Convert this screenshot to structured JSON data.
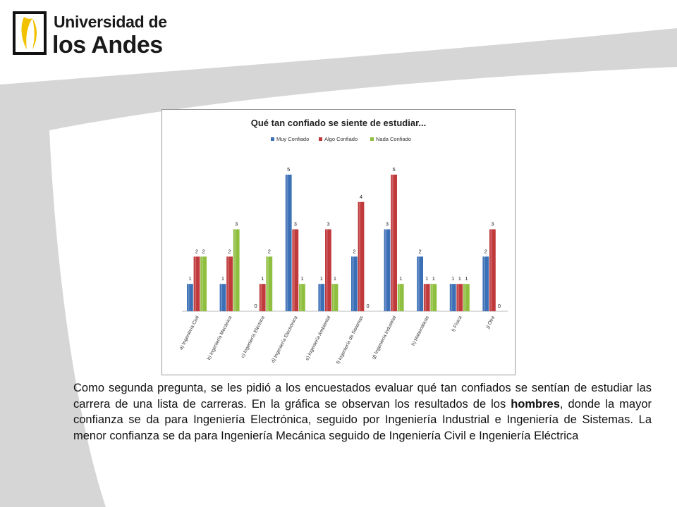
{
  "colors": {
    "muy": "#3b6fb6",
    "algo": "#c0393b",
    "nada": "#8fbf3f",
    "swoosh": "#d6d6d6"
  },
  "logo": {
    "line1": "Universidad de",
    "line2": "los Andes"
  },
  "body": {
    "part1": "Como segunda pregunta, se les pidió a los encuestados evaluar qué tan confiados se sentían de estudiar las carrera de una lista de carreras. En la gráfica se observan los resultados de los ",
    "bold": "hombres",
    "part2": ", donde la mayor confianza se da para Ingeniería Electrónica, seguido por Ingeniería Industrial e Ingeniería de Sistemas. La menor confianza se da para Ingeniería Mecánica seguido de Ingeniería Civil e Ingeniería Eléctrica"
  },
  "chart_data": {
    "type": "bar",
    "title": "Qué tan confiado se siente de estudiar...",
    "legend_position": "top",
    "grid": false,
    "ylim": [
      0,
      5
    ],
    "categories": [
      "a)   Ingeniería Civil",
      "b)   Ingeniería Mecánica",
      "c)   Ingeniería Eléctrica",
      "d)   Ingeniería Electrónica",
      "e)   Ingeniería Ambiental",
      "f)   Ingeniería de Sistemas",
      "g)   Ingeniería Industrial",
      "h)   Matemáticas",
      "i)   Física",
      "j)   Otra"
    ],
    "series": [
      {
        "name": "Muy Confiado",
        "color": "#3b6fb6",
        "values": [
          1,
          1,
          0,
          5,
          1,
          2,
          3,
          2,
          1,
          2
        ]
      },
      {
        "name": "Algo Confiado",
        "color": "#c0393b",
        "values": [
          2,
          2,
          1,
          3,
          3,
          4,
          5,
          1,
          1,
          3
        ]
      },
      {
        "name": "Nada Confiado",
        "color": "#8fbf3f",
        "values": [
          2,
          3,
          2,
          1,
          1,
          0,
          1,
          1,
          1,
          0
        ]
      }
    ]
  }
}
